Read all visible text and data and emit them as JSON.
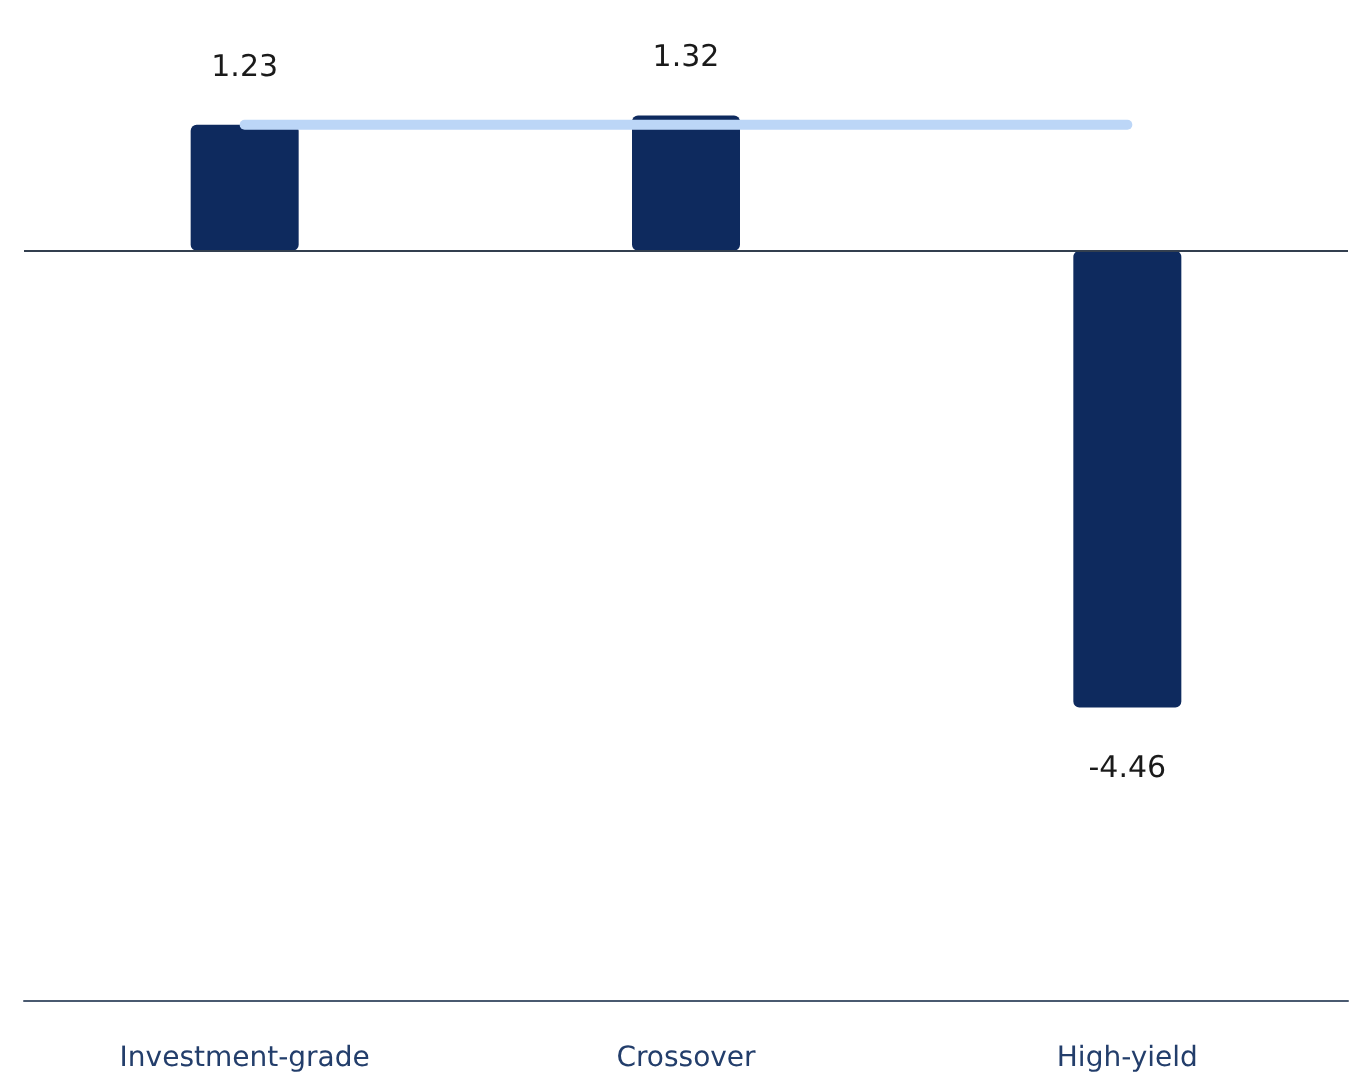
{
  "chart_data": {
    "type": "bar",
    "categories": [
      "Investment-grade",
      "Crossover",
      "High-yield"
    ],
    "series": [
      {
        "color": "#0e2a5e",
        "values": [
          1.23,
          1.32,
          -4.46
        ],
        "value_labels": [
          "1.23",
          "1.32",
          "-4.46"
        ]
      },
      {
        "type": "line",
        "color": "#bcd6f7",
        "values": [
          1.23,
          1.23,
          1.23
        ]
      }
    ],
    "tick_labels": "x",
    "grid": false,
    "marker": "none",
    "line_style": "solid",
    "ref_lines": [
      {
        "axis": "y",
        "value": 0,
        "color": "#333f4f"
      }
    ]
  }
}
